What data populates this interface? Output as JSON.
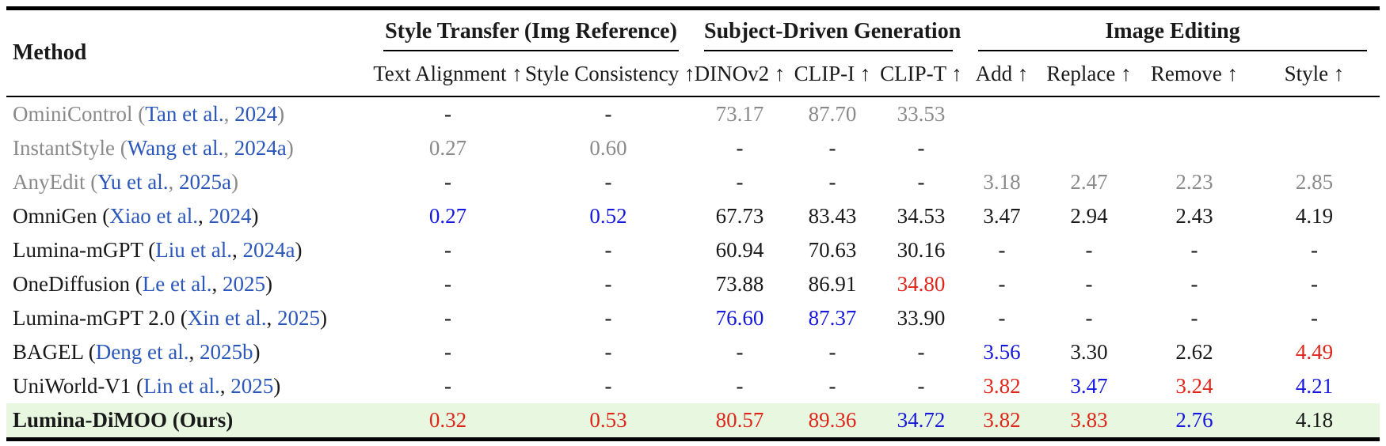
{
  "page": {
    "background": "#ffffff"
  },
  "table": {
    "method_header": "Method",
    "groups": [
      {
        "label": "Style Transfer (Img Reference)",
        "cols": [
          "Text Alignment ↑",
          "Style Consistency ↑"
        ]
      },
      {
        "label": "Subject-Driven Generation",
        "cols": [
          "DINOv2 ↑",
          "CLIP-I ↑",
          "CLIP-T ↑"
        ]
      },
      {
        "label": "Image Editing",
        "cols": [
          "Add ↑",
          "Replace ↑",
          "Remove ↑",
          "Style ↑"
        ]
      }
    ],
    "col_keys": [
      "text-alignment",
      "style-consistency",
      "dinov2",
      "clip-i",
      "clip-t",
      "add",
      "replace",
      "remove",
      "style"
    ],
    "colors": {
      "text": "#1a1a1a",
      "muted": "#8a8a8a",
      "best": "#e0261b",
      "second": "#1618dd",
      "cite": "#2b57ba",
      "highlight_bg": "#e7f7e0"
    },
    "rows": [
      {
        "method": {
          "name": "OminiControl",
          "authors": "Tan et al.",
          "year": "2024"
        },
        "muted": true,
        "bold": false,
        "highlight": false,
        "cells": [
          {
            "v": "-",
            "c": "text"
          },
          {
            "v": "-",
            "c": "text"
          },
          {
            "v": "73.17",
            "c": "muted"
          },
          {
            "v": "87.70",
            "c": "muted"
          },
          {
            "v": "33.53",
            "c": "muted"
          },
          {
            "v": "",
            "c": "text"
          },
          {
            "v": "",
            "c": "text"
          },
          {
            "v": "",
            "c": "text"
          },
          {
            "v": "",
            "c": "text"
          }
        ]
      },
      {
        "method": {
          "name": "InstantStyle",
          "authors": "Wang et al.",
          "year": "2024a"
        },
        "muted": true,
        "bold": false,
        "highlight": false,
        "cells": [
          {
            "v": "0.27",
            "c": "muted"
          },
          {
            "v": "0.60",
            "c": "muted"
          },
          {
            "v": "-",
            "c": "text"
          },
          {
            "v": "-",
            "c": "text"
          },
          {
            "v": "-",
            "c": "text"
          },
          {
            "v": "",
            "c": "text"
          },
          {
            "v": "",
            "c": "text"
          },
          {
            "v": "",
            "c": "text"
          },
          {
            "v": "",
            "c": "text"
          }
        ]
      },
      {
        "method": {
          "name": "AnyEdit",
          "authors": "Yu et al.",
          "year": "2025a"
        },
        "muted": true,
        "bold": false,
        "highlight": false,
        "cells": [
          {
            "v": "-",
            "c": "text"
          },
          {
            "v": "-",
            "c": "text"
          },
          {
            "v": "-",
            "c": "text"
          },
          {
            "v": "-",
            "c": "text"
          },
          {
            "v": "-",
            "c": "text"
          },
          {
            "v": "3.18",
            "c": "muted"
          },
          {
            "v": "2.47",
            "c": "muted"
          },
          {
            "v": "2.23",
            "c": "muted"
          },
          {
            "v": "2.85",
            "c": "muted"
          }
        ]
      },
      {
        "method": {
          "name": "OmniGen",
          "authors": "Xiao et al.",
          "year": "2024"
        },
        "muted": false,
        "bold": false,
        "highlight": false,
        "cells": [
          {
            "v": "0.27",
            "c": "second"
          },
          {
            "v": "0.52",
            "c": "second"
          },
          {
            "v": "67.73",
            "c": "text"
          },
          {
            "v": "83.43",
            "c": "text"
          },
          {
            "v": "34.53",
            "c": "text"
          },
          {
            "v": "3.47",
            "c": "text"
          },
          {
            "v": "2.94",
            "c": "text"
          },
          {
            "v": "2.43",
            "c": "text"
          },
          {
            "v": "4.19",
            "c": "text"
          }
        ]
      },
      {
        "method": {
          "name": "Lumina-mGPT",
          "authors": "Liu et al.",
          "year": "2024a"
        },
        "muted": false,
        "bold": false,
        "highlight": false,
        "cells": [
          {
            "v": "-",
            "c": "text"
          },
          {
            "v": "-",
            "c": "text"
          },
          {
            "v": "60.94",
            "c": "text"
          },
          {
            "v": "70.63",
            "c": "text"
          },
          {
            "v": "30.16",
            "c": "text"
          },
          {
            "v": "-",
            "c": "text"
          },
          {
            "v": "-",
            "c": "text"
          },
          {
            "v": "-",
            "c": "text"
          },
          {
            "v": "-",
            "c": "text"
          }
        ]
      },
      {
        "method": {
          "name": "OneDiffusion",
          "authors": "Le et al.",
          "year": "2025"
        },
        "muted": false,
        "bold": false,
        "highlight": false,
        "cells": [
          {
            "v": "-",
            "c": "text"
          },
          {
            "v": "-",
            "c": "text"
          },
          {
            "v": "73.88",
            "c": "text"
          },
          {
            "v": "86.91",
            "c": "text"
          },
          {
            "v": "34.80",
            "c": "best"
          },
          {
            "v": "-",
            "c": "text"
          },
          {
            "v": "-",
            "c": "text"
          },
          {
            "v": "-",
            "c": "text"
          },
          {
            "v": "-",
            "c": "text"
          }
        ]
      },
      {
        "method": {
          "name": "Lumina-mGPT 2.0",
          "authors": "Xin et al.",
          "year": "2025"
        },
        "muted": false,
        "bold": false,
        "highlight": false,
        "cells": [
          {
            "v": "-",
            "c": "text"
          },
          {
            "v": "-",
            "c": "text"
          },
          {
            "v": "76.60",
            "c": "second"
          },
          {
            "v": "87.37",
            "c": "second"
          },
          {
            "v": "33.90",
            "c": "text"
          },
          {
            "v": "-",
            "c": "text"
          },
          {
            "v": "-",
            "c": "text"
          },
          {
            "v": "-",
            "c": "text"
          },
          {
            "v": "-",
            "c": "text"
          }
        ]
      },
      {
        "method": {
          "name": "BAGEL",
          "authors": "Deng et al.",
          "year": "2025b"
        },
        "muted": false,
        "bold": false,
        "highlight": false,
        "cells": [
          {
            "v": "-",
            "c": "text"
          },
          {
            "v": "-",
            "c": "text"
          },
          {
            "v": "-",
            "c": "text"
          },
          {
            "v": "-",
            "c": "text"
          },
          {
            "v": "-",
            "c": "text"
          },
          {
            "v": "3.56",
            "c": "second"
          },
          {
            "v": "3.30",
            "c": "text"
          },
          {
            "v": "2.62",
            "c": "text"
          },
          {
            "v": "4.49",
            "c": "best"
          }
        ]
      },
      {
        "method": {
          "name": "UniWorld-V1",
          "authors": "Lin et al.",
          "year": "2025"
        },
        "muted": false,
        "bold": false,
        "highlight": false,
        "cells": [
          {
            "v": "-",
            "c": "text"
          },
          {
            "v": "-",
            "c": "text"
          },
          {
            "v": "-",
            "c": "text"
          },
          {
            "v": "-",
            "c": "text"
          },
          {
            "v": "-",
            "c": "text"
          },
          {
            "v": "3.82",
            "c": "best"
          },
          {
            "v": "3.47",
            "c": "second"
          },
          {
            "v": "3.24",
            "c": "best"
          },
          {
            "v": "4.21",
            "c": "second"
          }
        ]
      },
      {
        "method": {
          "name": "Lumina-DiMOO (Ours)",
          "authors": "",
          "year": ""
        },
        "muted": false,
        "bold": true,
        "highlight": true,
        "cells": [
          {
            "v": "0.32",
            "c": "best"
          },
          {
            "v": "0.53",
            "c": "best"
          },
          {
            "v": "80.57",
            "c": "best"
          },
          {
            "v": "89.36",
            "c": "best"
          },
          {
            "v": "34.72",
            "c": "second"
          },
          {
            "v": "3.82",
            "c": "best"
          },
          {
            "v": "3.83",
            "c": "best"
          },
          {
            "v": "2.76",
            "c": "second"
          },
          {
            "v": "4.18",
            "c": "text"
          }
        ]
      }
    ]
  }
}
